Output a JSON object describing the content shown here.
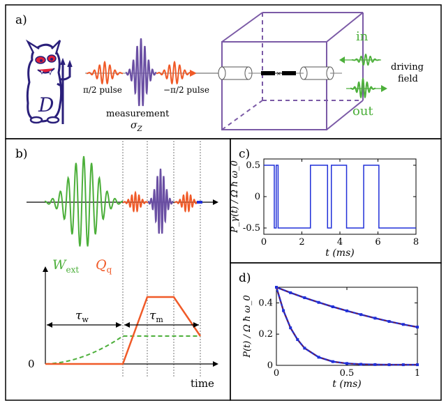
{
  "panels": {
    "a": {
      "label": "a)",
      "pulse_left": "π/2 pulse",
      "measurement": "measurement",
      "sigma": "σ",
      "sigma_sub": "Z",
      "pulse_right": "−π/2 pulse",
      "in_label": "in",
      "out_label": "out",
      "driving1": "driving",
      "driving2": "field",
      "demon_letter": "D"
    },
    "b": {
      "label": "b)",
      "w_ext": "W",
      "w_ext_sub": "ext",
      "q_q": "Q",
      "q_q_sub": "q",
      "tau_w": "τ",
      "tau_w_sub": "w",
      "tau_m": "τ",
      "tau_m_sub": "m",
      "zero": "0",
      "time": "time"
    },
    "c": {
      "label": "c)"
    },
    "d": {
      "label": "d)"
    }
  },
  "colors": {
    "orange": "#f05a28",
    "purple": "#6a4fa3",
    "green": "#4caf3a",
    "blue": "#1f2fd8",
    "darkred": "#8b1a1a",
    "box": "#7b5aa6"
  },
  "chart_data": [
    {
      "panel": "c",
      "type": "line",
      "xlabel": "t (ms)",
      "ylabel": "P_γ(t) / Ω ħ ω_0",
      "xlim": [
        0,
        8
      ],
      "ylim": [
        -0.6,
        0.6
      ],
      "xticks": [
        "0",
        "2",
        "4",
        "6",
        "8"
      ],
      "yticks": [
        "0.5",
        "0",
        "-0.5"
      ],
      "series": [
        {
          "x": [
            0,
            0.55,
            0.55,
            0.65,
            0.65,
            0.75,
            0.75,
            0.85,
            0.85,
            2.45,
            2.45,
            2.55,
            2.55,
            3.35,
            3.35,
            3.55,
            3.55,
            4.35,
            4.35,
            5.25,
            5.25,
            6.05,
            6.05,
            8
          ],
          "y": [
            0.5,
            0.5,
            -0.5,
            -0.5,
            0.5,
            0.5,
            -0.5,
            -0.5,
            -0.5,
            -0.5,
            0.5,
            0.5,
            0.5,
            0.5,
            -0.5,
            -0.5,
            0.5,
            0.5,
            -0.5,
            -0.5,
            0.5,
            0.5,
            -0.5,
            -0.5
          ]
        }
      ]
    },
    {
      "panel": "d",
      "type": "line",
      "xlabel": "t (ms)",
      "ylabel": "P(t) / Ω ħ ω_0",
      "xlim": [
        0,
        1
      ],
      "ylim": [
        0,
        0.5
      ],
      "xticks": [
        "0",
        "0.5",
        "1"
      ],
      "yticks": [
        "0.4",
        "0.2",
        "0"
      ],
      "series": [
        {
          "kind": "data",
          "x": [
            0,
            0.1,
            0.2,
            0.3,
            0.4,
            0.5,
            0.6,
            0.7,
            0.8,
            0.9,
            1.0
          ],
          "y": [
            0.5,
            0.465,
            0.433,
            0.403,
            0.375,
            0.349,
            0.325,
            0.302,
            0.281,
            0.262,
            0.245
          ]
        },
        {
          "kind": "data",
          "x": [
            0,
            0.05,
            0.1,
            0.15,
            0.2,
            0.3,
            0.4,
            0.5,
            0.6,
            0.7,
            0.8,
            0.9,
            1.0
          ],
          "y": [
            0.5,
            0.35,
            0.24,
            0.165,
            0.11,
            0.052,
            0.024,
            0.012,
            0.007,
            0.005,
            0.004,
            0.004,
            0.004
          ]
        }
      ]
    }
  ]
}
